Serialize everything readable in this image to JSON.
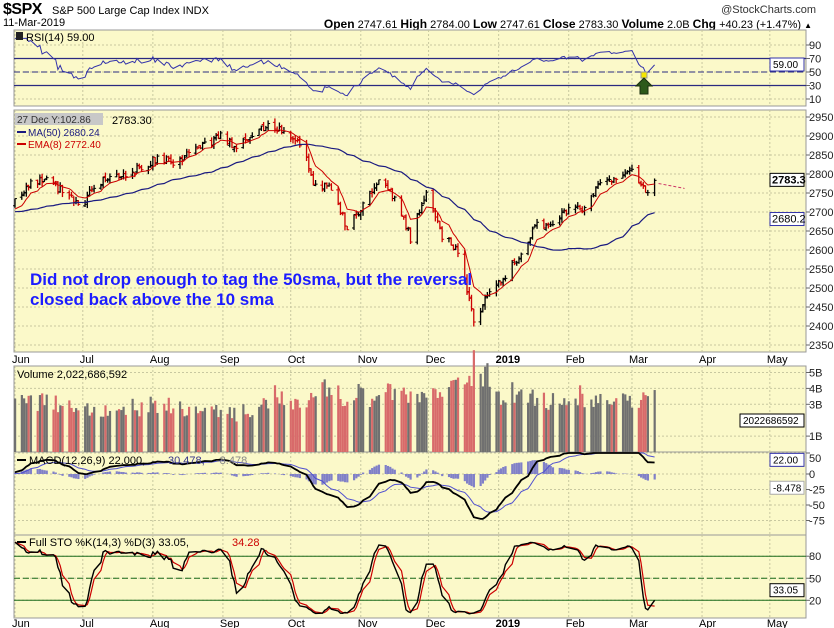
{
  "header": {
    "symbol": "$SPX",
    "name": "S&P 500 Large Cap Index INDX",
    "watermark": "@StockCharts.com",
    "date": "11-Mar-2019",
    "open_label": "Open",
    "open": "2747.61",
    "high_label": "High",
    "high": "2784.00",
    "low_label": "Low",
    "low": "2747.61",
    "close_label": "Close",
    "close": "2783.30",
    "volume_label": "Volume",
    "volume": "2.0B",
    "chg_label": "Chg",
    "chg": "+40.23 (+1.47%)",
    "up_arrow": "▲"
  },
  "annotation": "Did not drop enough to tag the 50sma, but the reversal closed back above the 10 sma",
  "colors": {
    "background": "#fbf9c9",
    "up_bar": "#000000",
    "down_bar": "#cc0000",
    "ma50": "#1a1a80",
    "ema8": "#cc0000",
    "rsi": "#3333aa",
    "annotation": "#1c1cff"
  },
  "chart_data": {
    "type": "line",
    "title": "$SPX S&P 500 Large Cap Index INDX",
    "x_ticks": [
      "Jun",
      "Jul",
      "Aug",
      "Sep",
      "Oct",
      "Nov",
      "Dec",
      "2019",
      "Feb",
      "Mar",
      "Apr",
      "May"
    ],
    "x_tick_days": [
      0,
      30,
      61,
      92,
      122,
      153,
      183,
      214,
      245,
      273,
      304,
      334
    ],
    "rsi": {
      "legend": "RSI(14) 59.00",
      "value_tag": "59.00",
      "ticks": [
        "90",
        "70",
        "50",
        "30",
        "10"
      ],
      "tick_values": [
        90,
        70,
        50,
        30,
        10
      ],
      "ylim": [
        0,
        100
      ]
    },
    "price": {
      "crosshair_label": "27 Dec Y:102.86",
      "last_close": "2783.30",
      "ma_legend": "MA(50) 2680.24",
      "ema_legend": "EMA(8) 2772.40",
      "tag_close": "2783.3",
      "tag_ma": "2680.2",
      "ticks": [
        "2950",
        "2900",
        "2850",
        "2800",
        "2750",
        "2700",
        "2650",
        "2600",
        "2550",
        "2500",
        "2450",
        "2400",
        "2350"
      ],
      "tick_values": [
        2950,
        2900,
        2850,
        2800,
        2750,
        2700,
        2650,
        2600,
        2550,
        2500,
        2450,
        2400,
        2350
      ],
      "ylim": [
        2330,
        2965
      ],
      "weekly_closes": [
        2735,
        2779,
        2780,
        2755,
        2718,
        2759,
        2801,
        2802,
        2818,
        2840,
        2833,
        2850,
        2874,
        2901,
        2871,
        2904,
        2930,
        2913,
        2885,
        2767,
        2767,
        2658,
        2723,
        2781,
        2736,
        2632,
        2760,
        2633,
        2600,
        2416,
        2485,
        2531,
        2596,
        2670,
        2664,
        2706,
        2707,
        2775,
        2792,
        2803,
        2743,
        2783.3
      ]
    },
    "volume": {
      "legend": "Volume 2,022,686,592",
      "value_tag": "2022686592",
      "ticks": [
        "5B",
        "4B",
        "3B",
        "1B"
      ],
      "tick_values": [
        5,
        4,
        3,
        1
      ],
      "weekly_avg_billions": [
        3.0,
        3.2,
        3.1,
        2.9,
        2.7,
        2.6,
        2.9,
        2.8,
        3.0,
        3.0,
        2.8,
        2.6,
        2.5,
        2.4,
        2.7,
        3.0,
        3.5,
        3.1,
        3.2,
        4.0,
        3.6,
        3.8,
        3.4,
        3.6,
        3.5,
        3.3,
        3.9,
        4.0,
        4.2,
        4.8,
        3.5,
        3.8,
        3.4,
        3.3,
        3.2,
        3.5,
        3.2,
        3.4,
        3.2,
        3.3,
        3.3,
        2.0
      ]
    },
    "macd": {
      "legend_main": "MACD(12,26,9) 22.000,",
      "legend_signal": "30.478,",
      "legend_hist": "-8.478",
      "tag_macd": "22.00",
      "tag_hist": "-8.478",
      "ticks": [
        "50",
        "0",
        "-25",
        "-50",
        "-75"
      ],
      "tick_values": [
        50,
        0,
        -25,
        -50,
        -75
      ],
      "ylim": [
        -95,
        70
      ]
    },
    "sto": {
      "legend_main": "Full STO %K(14,3) %D(3) 33.05,",
      "legend_d": "34.28",
      "value_tag": "33.05",
      "ticks": [
        "80",
        "50",
        "20"
      ],
      "tick_values": [
        80,
        50,
        20
      ],
      "ylim": [
        0,
        100
      ]
    }
  }
}
